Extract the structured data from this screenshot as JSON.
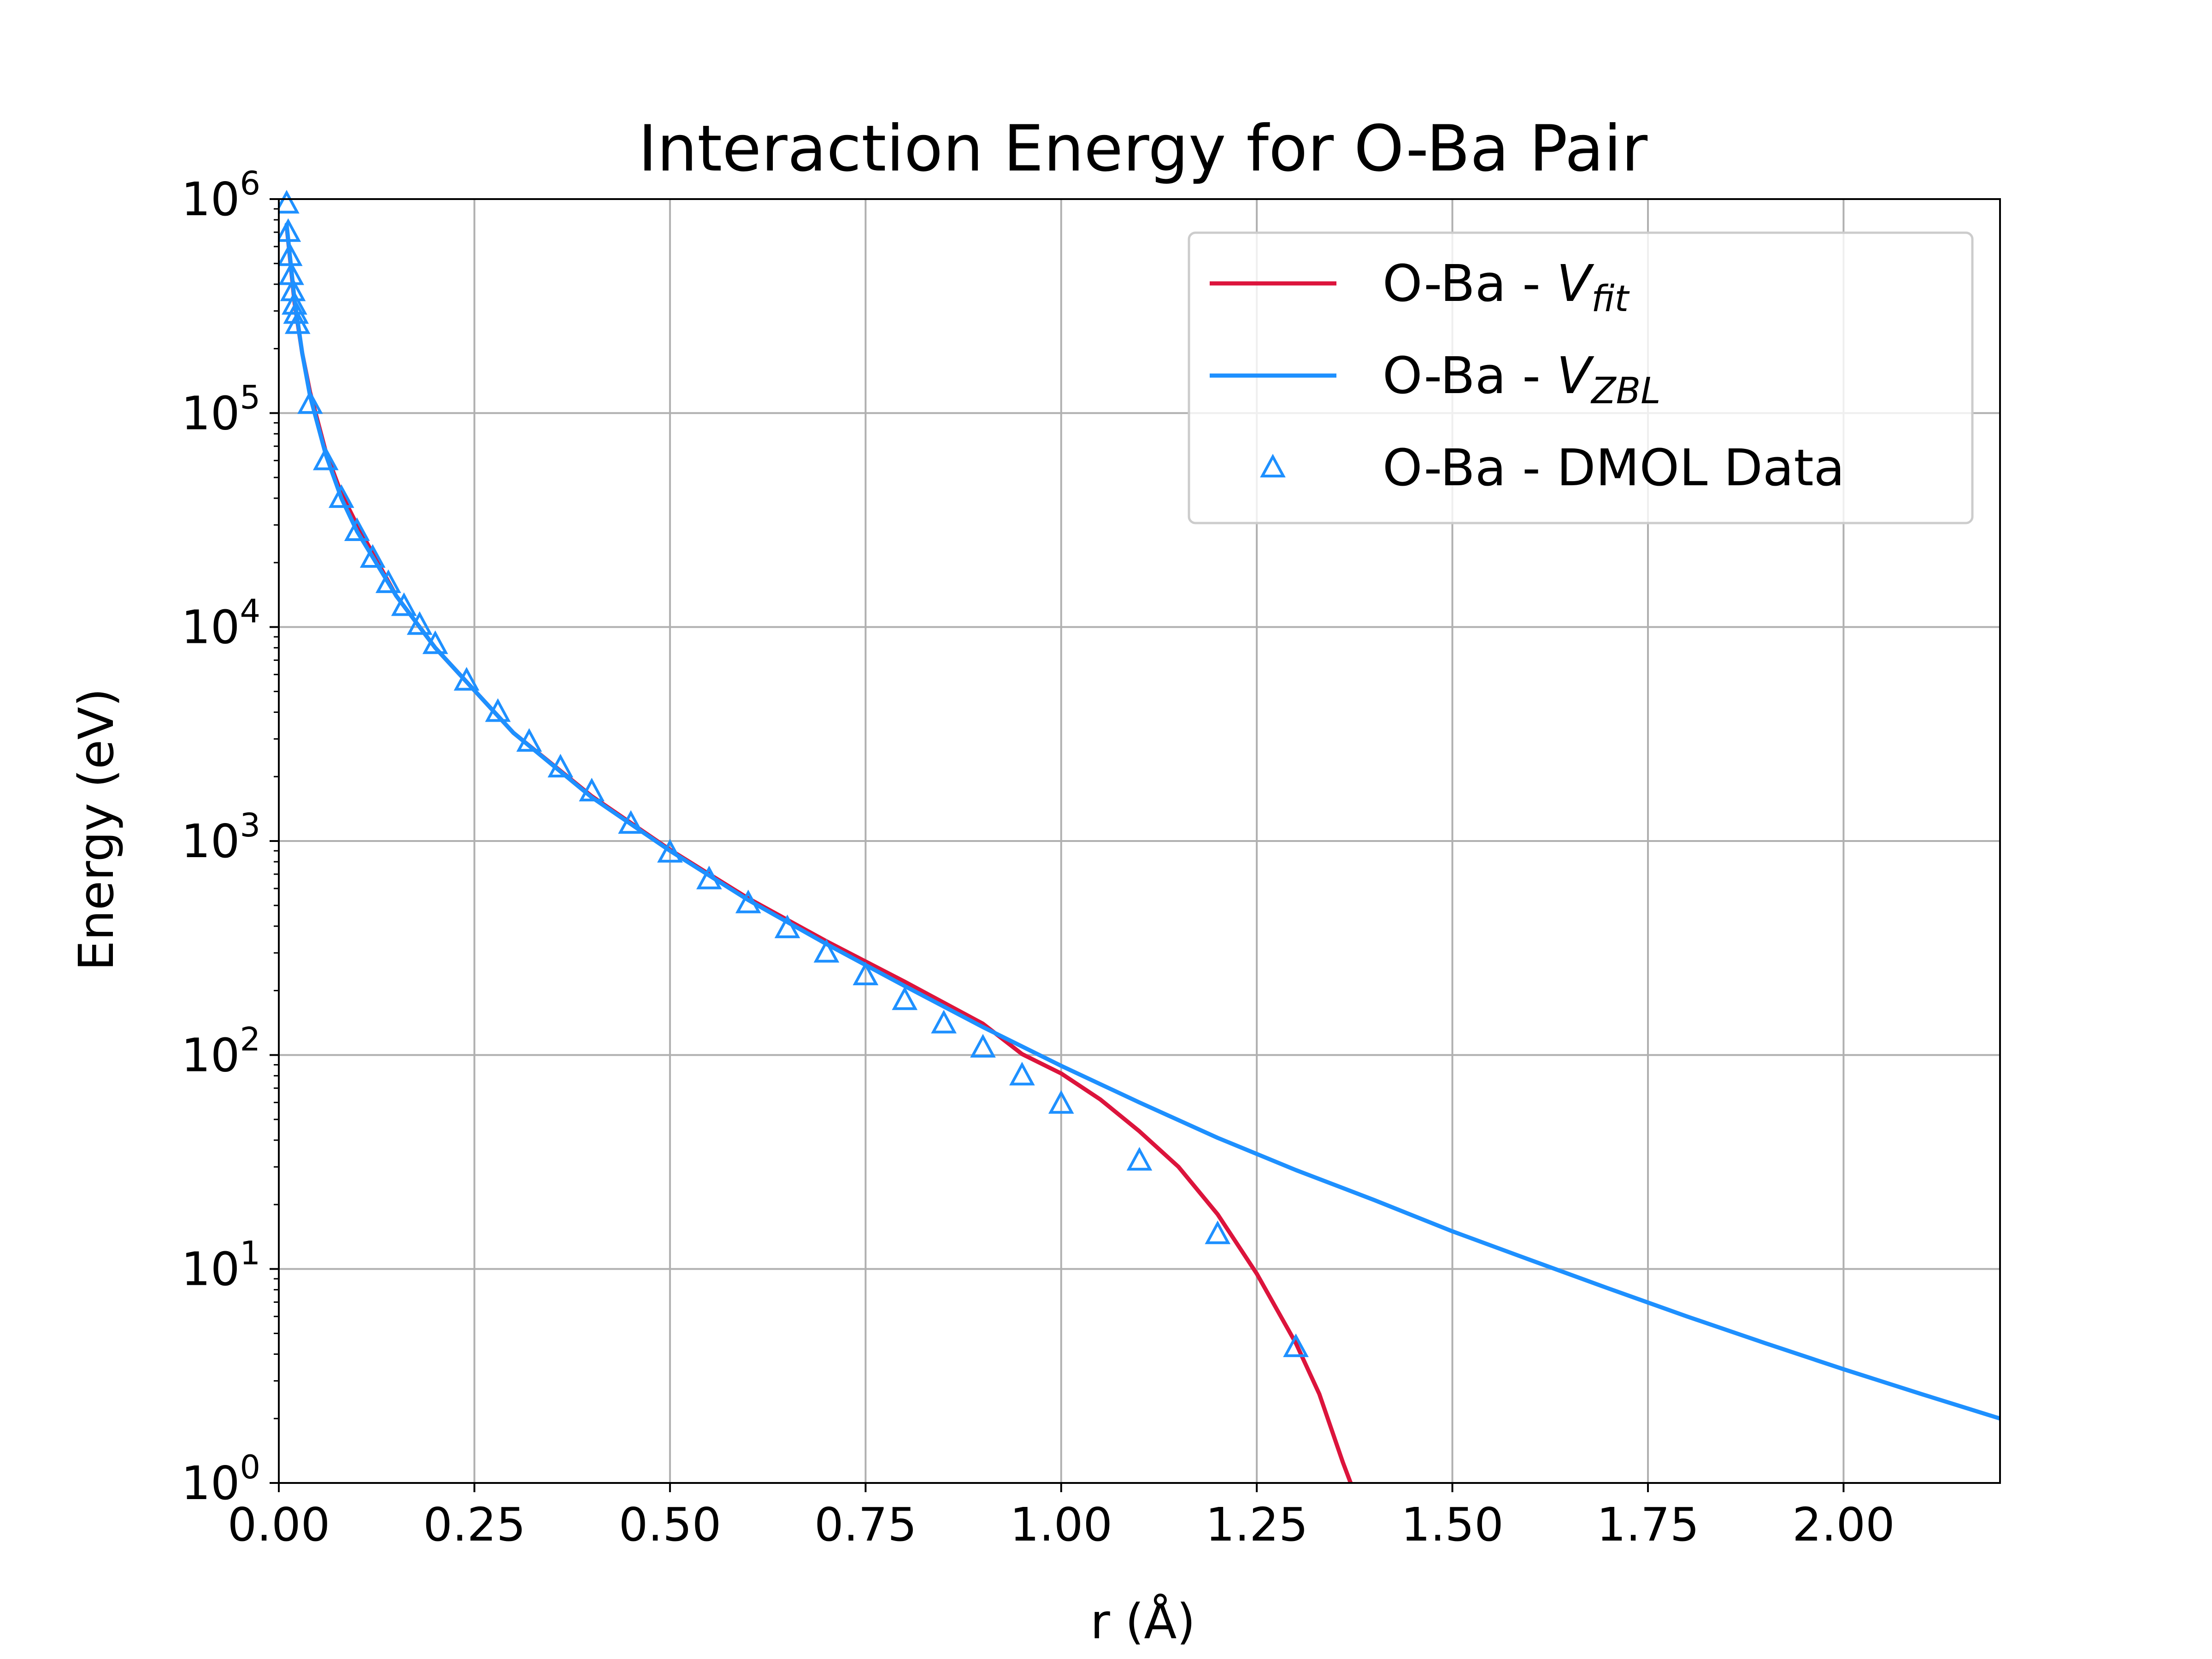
{
  "chart_data": {
    "type": "line",
    "title": "Interaction Energy for O-Ba Pair",
    "xlabel": "r (Å)",
    "ylabel": "Energy (eV)",
    "xlim": [
      0,
      2.2
    ],
    "ylim": [
      1,
      1000000
    ],
    "yscale": "log",
    "grid": true,
    "legend_position": "top-right",
    "x_ticks": [
      "0.00",
      "0.25",
      "0.50",
      "0.75",
      "1.00",
      "1.25",
      "1.50",
      "1.75",
      "2.00"
    ],
    "x_tick_values": [
      0,
      0.25,
      0.5,
      0.75,
      1.0,
      1.25,
      1.5,
      1.75,
      2.0
    ],
    "y_ticks": [
      {
        "base": "10",
        "exp": "0",
        "value": 1
      },
      {
        "base": "10",
        "exp": "1",
        "value": 10
      },
      {
        "base": "10",
        "exp": "2",
        "value": 100
      },
      {
        "base": "10",
        "exp": "3",
        "value": 1000
      },
      {
        "base": "10",
        "exp": "4",
        "value": 10000
      },
      {
        "base": "10",
        "exp": "5",
        "value": 100000
      },
      {
        "base": "10",
        "exp": "6",
        "value": 1000000
      }
    ],
    "series": [
      {
        "name": "O-Ba - V_fit",
        "legend_main": "O-Ba - ",
        "legend_italic": "V",
        "legend_sub": "fit",
        "color": "#dc143c",
        "style": "line",
        "x": [
          0.01,
          0.02,
          0.03,
          0.04,
          0.06,
          0.08,
          0.1,
          0.15,
          0.2,
          0.3,
          0.4,
          0.5,
          0.6,
          0.7,
          0.8,
          0.9,
          0.95,
          1.0,
          1.05,
          1.1,
          1.15,
          1.2,
          1.25,
          1.3,
          1.33,
          1.36,
          1.37
        ],
        "y": [
          750000,
          330000,
          190000,
          125000,
          66000,
          42000,
          30000,
          14000,
          8000,
          3200,
          1620,
          910,
          540,
          340,
          220,
          140,
          101,
          82,
          62,
          44,
          30,
          18,
          9.5,
          4.5,
          2.6,
          1.25,
          1.0
        ]
      },
      {
        "name": "O-Ba - V_ZBL",
        "legend_main": "O-Ba - ",
        "legend_italic": "V",
        "legend_sub": "ZBL",
        "color": "#1e90ff",
        "style": "line",
        "x": [
          0.01,
          0.02,
          0.03,
          0.04,
          0.06,
          0.08,
          0.1,
          0.15,
          0.2,
          0.3,
          0.4,
          0.5,
          0.6,
          0.7,
          0.8,
          0.9,
          1.0,
          1.1,
          1.2,
          1.3,
          1.4,
          1.5,
          1.6,
          1.7,
          1.8,
          1.9,
          2.0,
          2.1,
          2.2
        ],
        "y": [
          760000,
          340000,
          190000,
          120000,
          64000,
          40000,
          28000,
          14000,
          8000,
          3200,
          1600,
          900,
          530,
          330,
          210,
          135,
          89,
          60,
          41,
          29,
          21,
          15,
          11,
          8.1,
          6.0,
          4.5,
          3.4,
          2.6,
          2.0
        ]
      },
      {
        "name": "O-Ba - DMOL Data",
        "legend_main": "O-Ba - DMOL Data",
        "color": "#1e90ff",
        "style": "marker-triangle",
        "x": [
          0.01,
          0.012,
          0.014,
          0.016,
          0.018,
          0.02,
          0.022,
          0.024,
          0.04,
          0.06,
          0.08,
          0.1,
          0.12,
          0.14,
          0.16,
          0.18,
          0.2,
          0.24,
          0.28,
          0.32,
          0.36,
          0.4,
          0.45,
          0.5,
          0.55,
          0.6,
          0.65,
          0.7,
          0.75,
          0.8,
          0.85,
          0.9,
          0.95,
          1.0,
          1.1,
          1.2,
          1.3
        ],
        "y": [
          950000,
          700000,
          540000,
          440000,
          370000,
          320000,
          290000,
          260000,
          110000,
          60000,
          40000,
          28000,
          21000,
          16000,
          12500,
          10200,
          8300,
          5600,
          4000,
          2900,
          2200,
          1700,
          1200,
          880,
          660,
          510,
          390,
          300,
          235,
          180,
          140,
          108,
          80,
          59,
          32,
          14.5,
          4.3
        ]
      }
    ]
  }
}
